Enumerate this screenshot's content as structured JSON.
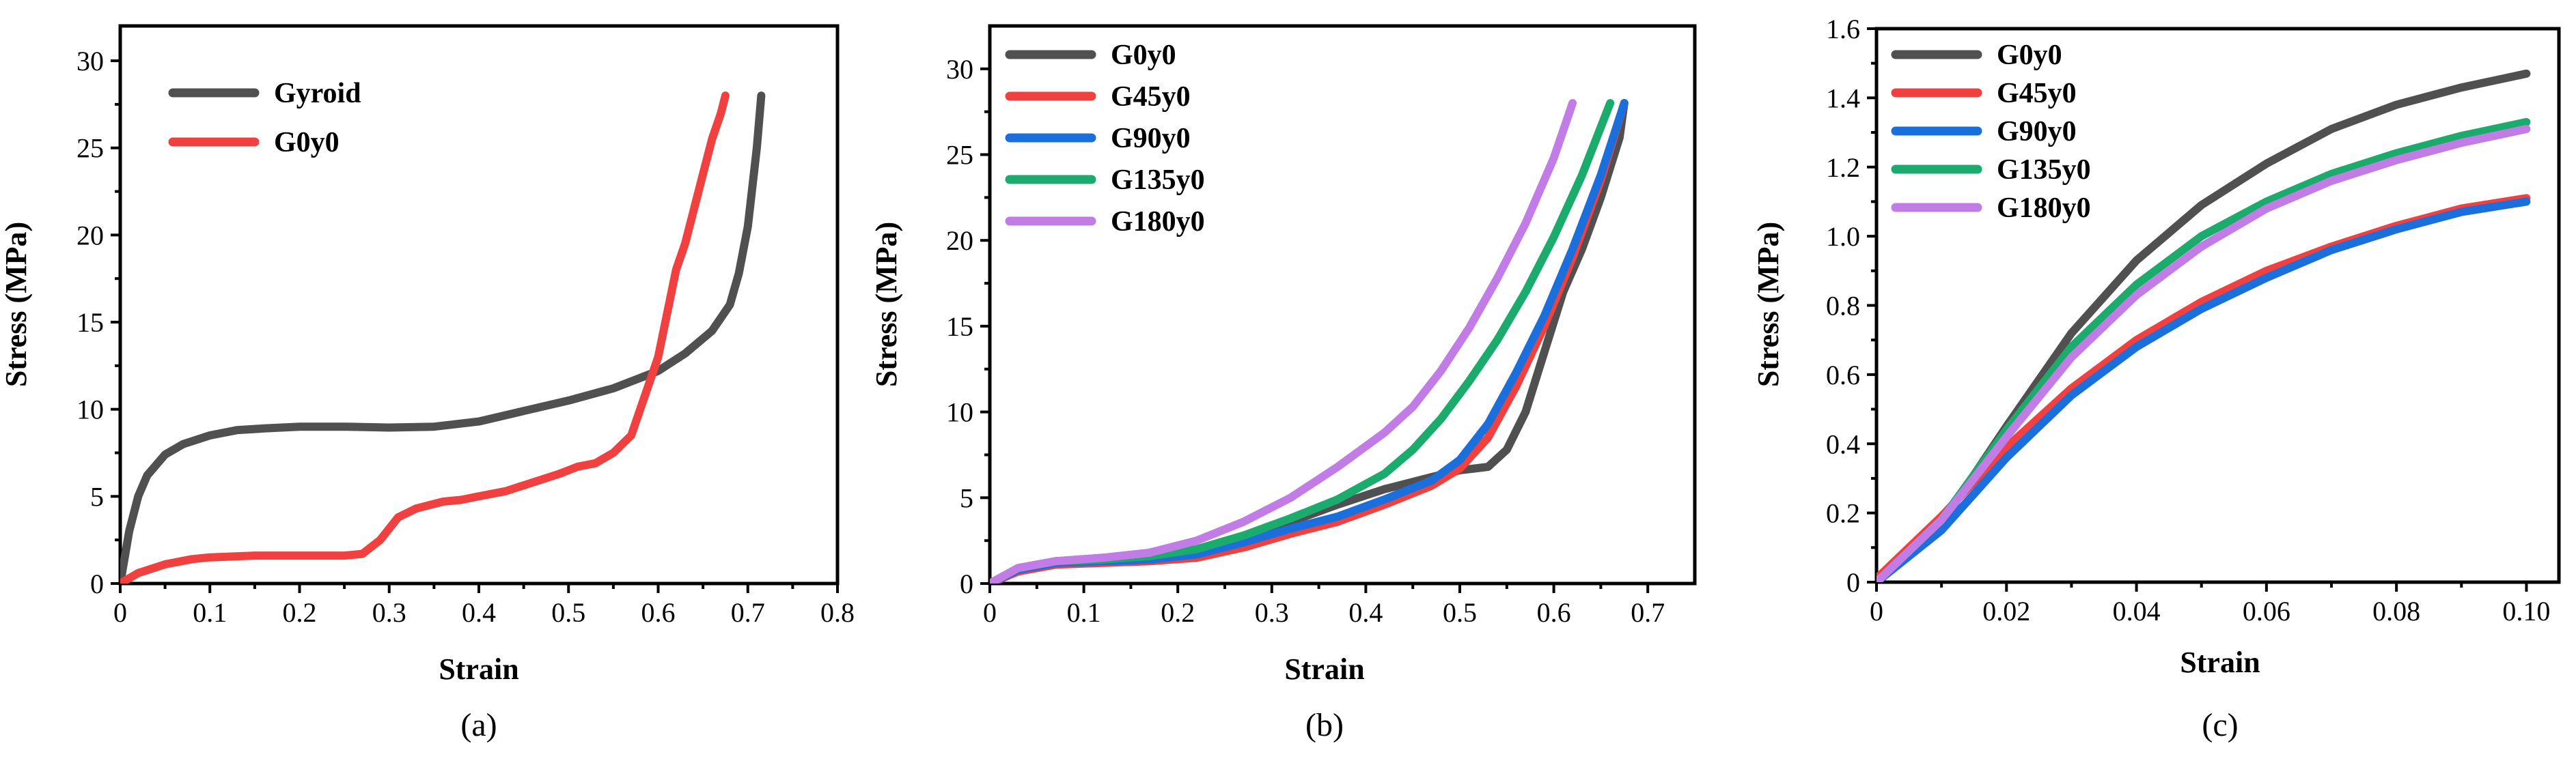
{
  "chart_data": [
    {
      "type": "line",
      "caption": "(a)",
      "xlabel": "Strain",
      "ylabel": "Stress (MPa)",
      "xlim": [
        0,
        0.8
      ],
      "ylim": [
        0,
        32
      ],
      "xticks": [
        0,
        0.1,
        0.2,
        0.3,
        0.4,
        0.5,
        0.6,
        0.7,
        0.8
      ],
      "xtick_labels": [
        "0",
        "0.1",
        "0.2",
        "0.3",
        "0.4",
        "0.5",
        "0.6",
        "0.7",
        "0.8"
      ],
      "yticks": [
        0,
        5,
        10,
        15,
        20,
        25,
        30
      ],
      "ytick_labels": [
        "0",
        "5",
        "10",
        "15",
        "20",
        "25",
        "30"
      ],
      "legend": "top-left",
      "series": [
        {
          "name": "Gyroid",
          "color": "#505050",
          "x": [
            0,
            0.005,
            0.01,
            0.02,
            0.03,
            0.05,
            0.07,
            0.1,
            0.13,
            0.16,
            0.2,
            0.25,
            0.3,
            0.35,
            0.4,
            0.45,
            0.5,
            0.55,
            0.6,
            0.63,
            0.66,
            0.68,
            0.69,
            0.7,
            0.71,
            0.715
          ],
          "y": [
            0,
            1.5,
            3.0,
            5.0,
            6.2,
            7.4,
            8.0,
            8.5,
            8.8,
            8.9,
            9.0,
            9.0,
            8.95,
            9.0,
            9.3,
            9.9,
            10.5,
            11.2,
            12.2,
            13.2,
            14.5,
            16.0,
            17.8,
            20.5,
            25.0,
            28.0
          ]
        },
        {
          "name": "G0y0",
          "color": "#f04040",
          "x": [
            0,
            0.02,
            0.05,
            0.08,
            0.1,
            0.15,
            0.2,
            0.25,
            0.27,
            0.29,
            0.31,
            0.33,
            0.36,
            0.38,
            0.4,
            0.43,
            0.46,
            0.49,
            0.51,
            0.53,
            0.55,
            0.57,
            0.58,
            0.59,
            0.6,
            0.61,
            0.62,
            0.63,
            0.64,
            0.65,
            0.66,
            0.67,
            0.675
          ],
          "y": [
            0,
            0.6,
            1.1,
            1.4,
            1.5,
            1.6,
            1.6,
            1.6,
            1.7,
            2.5,
            3.8,
            4.3,
            4.7,
            4.8,
            5.0,
            5.3,
            5.8,
            6.3,
            6.7,
            6.9,
            7.5,
            8.5,
            10.0,
            11.5,
            13.0,
            15.5,
            18.0,
            19.5,
            21.5,
            23.5,
            25.5,
            27.0,
            28.0
          ]
        }
      ]
    },
    {
      "type": "line",
      "caption": "(b)",
      "xlabel": "Strain",
      "ylabel": "Stress (MPa)",
      "xlim": [
        0,
        0.75
      ],
      "ylim": [
        0,
        32.5
      ],
      "xticks": [
        0,
        0.1,
        0.2,
        0.3,
        0.4,
        0.5,
        0.6,
        0.7
      ],
      "xtick_labels": [
        "0",
        "0.1",
        "0.2",
        "0.3",
        "0.4",
        "0.5",
        "0.6",
        "0.7"
      ],
      "yticks": [
        0,
        5,
        10,
        15,
        20,
        25,
        30
      ],
      "ytick_labels": [
        "0",
        "5",
        "10",
        "15",
        "20",
        "25",
        "30"
      ],
      "legend": "top-left",
      "series": [
        {
          "name": "G0y0",
          "color": "#505050",
          "x": [
            0,
            0.03,
            0.07,
            0.12,
            0.17,
            0.22,
            0.27,
            0.32,
            0.37,
            0.42,
            0.47,
            0.5,
            0.53,
            0.55,
            0.57,
            0.59,
            0.61,
            0.63,
            0.65,
            0.67,
            0.675
          ],
          "y": [
            0,
            0.8,
            1.3,
            1.5,
            1.6,
            1.9,
            2.6,
            3.6,
            4.6,
            5.5,
            6.2,
            6.6,
            6.8,
            7.8,
            10.0,
            13.5,
            17.0,
            19.5,
            22.5,
            26.0,
            28.0
          ]
        },
        {
          "name": "G45y0",
          "color": "#f04040",
          "x": [
            0,
            0.03,
            0.07,
            0.12,
            0.17,
            0.22,
            0.27,
            0.32,
            0.37,
            0.42,
            0.47,
            0.5,
            0.53,
            0.56,
            0.59,
            0.62,
            0.65,
            0.675
          ],
          "y": [
            0,
            0.7,
            1.1,
            1.2,
            1.3,
            1.5,
            2.1,
            2.9,
            3.6,
            4.6,
            5.7,
            6.7,
            8.5,
            11.5,
            15.0,
            19.0,
            23.5,
            28.0
          ]
        },
        {
          "name": "G90y0",
          "color": "#1a6fdc",
          "x": [
            0,
            0.03,
            0.07,
            0.12,
            0.17,
            0.22,
            0.27,
            0.32,
            0.37,
            0.42,
            0.47,
            0.5,
            0.53,
            0.56,
            0.59,
            0.62,
            0.65,
            0.675
          ],
          "y": [
            0,
            0.8,
            1.2,
            1.3,
            1.4,
            1.7,
            2.4,
            3.2,
            3.9,
            4.9,
            6.0,
            7.2,
            9.3,
            12.3,
            15.6,
            19.5,
            23.8,
            28.0
          ]
        },
        {
          "name": "G135y0",
          "color": "#1bab6d",
          "x": [
            0,
            0.03,
            0.07,
            0.12,
            0.17,
            0.22,
            0.27,
            0.32,
            0.37,
            0.42,
            0.45,
            0.48,
            0.51,
            0.54,
            0.57,
            0.6,
            0.63,
            0.66
          ],
          "y": [
            0,
            0.9,
            1.3,
            1.4,
            1.6,
            2.0,
            2.8,
            3.8,
            4.9,
            6.4,
            7.8,
            9.6,
            11.8,
            14.2,
            17.0,
            20.2,
            23.8,
            28.0
          ]
        },
        {
          "name": "G180y0",
          "color": "#c27ce6",
          "x": [
            0,
            0.03,
            0.07,
            0.12,
            0.17,
            0.22,
            0.27,
            0.32,
            0.37,
            0.42,
            0.45,
            0.48,
            0.51,
            0.54,
            0.57,
            0.6,
            0.62
          ],
          "y": [
            0,
            0.9,
            1.3,
            1.5,
            1.8,
            2.5,
            3.6,
            5.0,
            6.8,
            8.8,
            10.3,
            12.4,
            14.9,
            17.8,
            21.0,
            24.8,
            28.0
          ]
        }
      ]
    },
    {
      "type": "line",
      "caption": "(c)",
      "xlabel": "Strain",
      "ylabel": "Stress (MPa)",
      "xlim": [
        0,
        0.105
      ],
      "ylim": [
        0,
        1.6
      ],
      "xticks": [
        0,
        0.02,
        0.04,
        0.06,
        0.08,
        0.1
      ],
      "xtick_labels": [
        "0",
        "0.02",
        "0.04",
        "0.06",
        "0.08",
        "0.10"
      ],
      "yticks": [
        0,
        0.2,
        0.4,
        0.6,
        0.8,
        1.0,
        1.2,
        1.4,
        1.6
      ],
      "ytick_labels": [
        "0",
        "0.2",
        "0.4",
        "0.6",
        "0.8",
        "1.0",
        "1.2",
        "1.4",
        "1.6"
      ],
      "legend": "top-left",
      "series": [
        {
          "name": "G0y0",
          "color": "#505050",
          "x": [
            0,
            0.01,
            0.02,
            0.03,
            0.04,
            0.05,
            0.06,
            0.07,
            0.08,
            0.09,
            0.1
          ],
          "y": [
            0.0,
            0.17,
            0.45,
            0.72,
            0.93,
            1.09,
            1.21,
            1.31,
            1.38,
            1.43,
            1.47
          ]
        },
        {
          "name": "G45y0",
          "color": "#f04040",
          "x": [
            0,
            0.01,
            0.02,
            0.03,
            0.04,
            0.05,
            0.06,
            0.07,
            0.08,
            0.09,
            0.1
          ],
          "y": [
            0.01,
            0.19,
            0.39,
            0.56,
            0.7,
            0.81,
            0.9,
            0.97,
            1.03,
            1.08,
            1.11
          ]
        },
        {
          "name": "G90y0",
          "color": "#1a6fdc",
          "x": [
            0,
            0.01,
            0.02,
            0.03,
            0.04,
            0.05,
            0.06,
            0.07,
            0.08,
            0.09,
            0.1
          ],
          "y": [
            0.0,
            0.15,
            0.36,
            0.54,
            0.68,
            0.79,
            0.88,
            0.96,
            1.02,
            1.07,
            1.1
          ]
        },
        {
          "name": "G135y0",
          "color": "#1bab6d",
          "x": [
            0,
            0.01,
            0.02,
            0.03,
            0.04,
            0.05,
            0.06,
            0.07,
            0.08,
            0.09,
            0.1
          ],
          "y": [
            0.0,
            0.18,
            0.44,
            0.68,
            0.86,
            1.0,
            1.1,
            1.18,
            1.24,
            1.29,
            1.33
          ]
        },
        {
          "name": "G180y0",
          "color": "#c27ce6",
          "x": [
            0,
            0.01,
            0.02,
            0.03,
            0.04,
            0.05,
            0.06,
            0.07,
            0.08,
            0.09,
            0.1
          ],
          "y": [
            0.0,
            0.18,
            0.42,
            0.65,
            0.83,
            0.97,
            1.08,
            1.16,
            1.22,
            1.27,
            1.31
          ]
        }
      ]
    }
  ]
}
